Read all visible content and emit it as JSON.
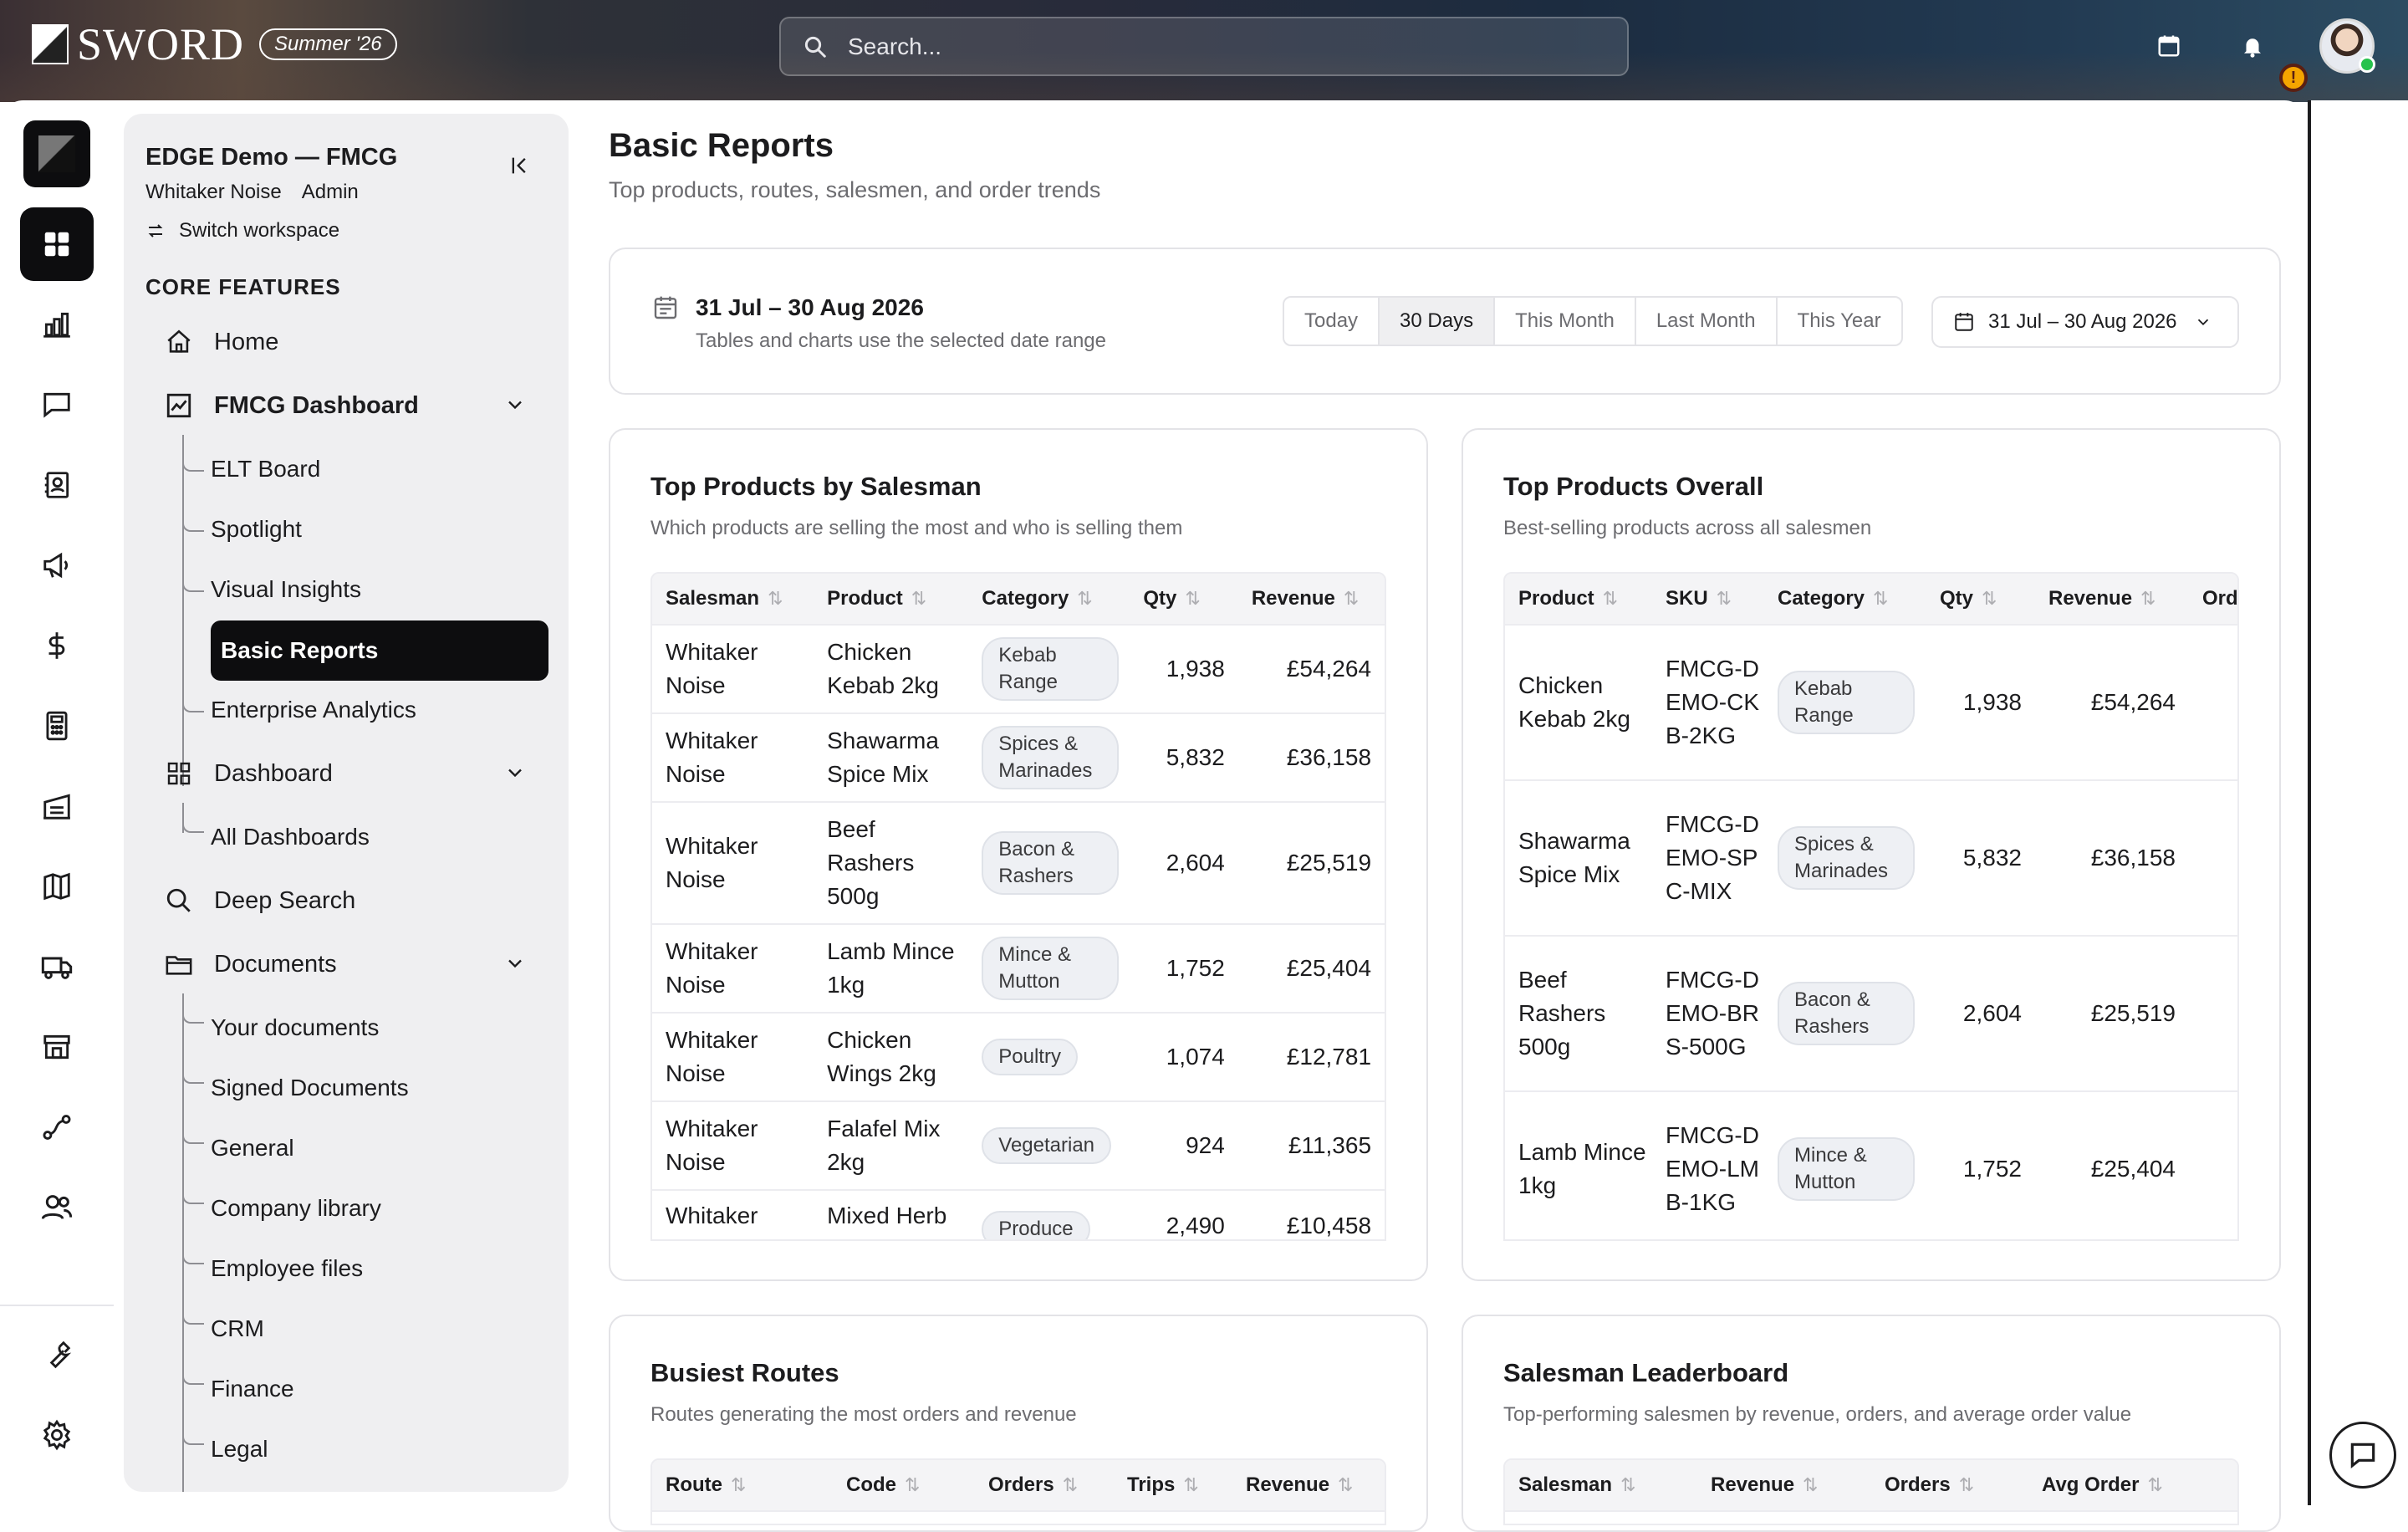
{
  "topbar": {
    "brand": "SWORD",
    "season": "Summer '26",
    "search_placeholder": "Search...",
    "alert_badge": "!"
  },
  "rail": {
    "items": [
      "dashboard-grid-icon",
      "bar-chart-icon",
      "chat-icon",
      "contacts-icon",
      "megaphone-icon",
      "dollar-icon",
      "calculator-icon",
      "factory-icon",
      "map-icon",
      "truck-icon",
      "store-icon",
      "route-icon",
      "users-icon",
      "wrench-icon",
      "gear-icon"
    ]
  },
  "sidebar": {
    "workspace_title": "EDGE Demo — FMCG",
    "user_name": "Whitaker Noise",
    "user_role": "Admin",
    "switch_label": "Switch workspace",
    "section_label": "CORE FEATURES",
    "home": "Home",
    "fmcg_dashboard": "FMCG Dashboard",
    "fmcg_children": [
      "ELT Board",
      "Spotlight",
      "Visual Insights",
      "Basic Reports",
      "Enterprise Analytics"
    ],
    "dashboard": "Dashboard",
    "dashboard_children": [
      "All Dashboards"
    ],
    "deep_search": "Deep Search",
    "documents": "Documents",
    "documents_children": [
      "Your documents",
      "Signed Documents",
      "General",
      "Company library",
      "Employee files",
      "CRM",
      "Finance",
      "Legal"
    ]
  },
  "page": {
    "title": "Basic Reports",
    "subtitle": "Top products, routes, salesmen, and order trends"
  },
  "date_range": {
    "label": "31 Jul – 30 Aug 2026",
    "hint": "Tables and charts use the selected date range",
    "presets": [
      "Today",
      "30 Days",
      "This Month",
      "Last Month",
      "This Year"
    ],
    "selected_preset": "30 Days",
    "picker_value": "31 Jul – 30 Aug 2026"
  },
  "top_by_salesman": {
    "title": "Top Products by Salesman",
    "subtitle": "Which products are selling the most and who is selling them",
    "columns": [
      "Salesman",
      "Product",
      "Category",
      "Qty",
      "Revenue"
    ],
    "rows": [
      {
        "salesman": "Whitaker Noise",
        "product": "Chicken Kebab 2kg",
        "category": "Kebab Range",
        "qty": "1,938",
        "revenue": "£54,264"
      },
      {
        "salesman": "Whitaker Noise",
        "product": "Shawarma Spice Mix",
        "category": "Spices & Marinades",
        "qty": "5,832",
        "revenue": "£36,158"
      },
      {
        "salesman": "Whitaker Noise",
        "product": "Beef Rashers 500g",
        "category": "Bacon & Rashers",
        "qty": "2,604",
        "revenue": "£25,519"
      },
      {
        "salesman": "Whitaker Noise",
        "product": "Lamb Mince 1kg",
        "category": "Mince & Mutton",
        "qty": "1,752",
        "revenue": "£25,404"
      },
      {
        "salesman": "Whitaker Noise",
        "product": "Chicken Wings 2kg",
        "category": "Poultry",
        "qty": "1,074",
        "revenue": "£12,781"
      },
      {
        "salesman": "Whitaker Noise",
        "product": "Falafel Mix 2kg",
        "category": "Vegetarian",
        "qty": "924",
        "revenue": "£11,365"
      },
      {
        "salesman": "Whitaker",
        "product": "Mixed Herb",
        "category": "Produce",
        "qty": "2,490",
        "revenue": "£10,458"
      }
    ]
  },
  "top_overall": {
    "title": "Top Products Overall",
    "subtitle": "Best-selling products across all salesmen",
    "columns": [
      "Product",
      "SKU",
      "Category",
      "Qty",
      "Revenue",
      "Ord"
    ],
    "rows": [
      {
        "product": "Chicken Kebab 2kg",
        "sku": "FMCG-DEMO-CKB-2KG",
        "category": "Kebab Range",
        "qty": "1,938",
        "revenue": "£54,264"
      },
      {
        "product": "Shawarma Spice Mix",
        "sku": "FMCG-DEMO-SPC-MIX",
        "category": "Spices & Marinades",
        "qty": "5,832",
        "revenue": "£36,158"
      },
      {
        "product": "Beef Rashers 500g",
        "sku": "FMCG-DEMO-BRS-500G",
        "category": "Bacon & Rashers",
        "qty": "2,604",
        "revenue": "£25,519"
      },
      {
        "product": "Lamb Mince 1kg",
        "sku": "FMCG-DEMO-LMB-1KG",
        "category": "Mince & Mutton",
        "qty": "1,752",
        "revenue": "£25,404"
      }
    ]
  },
  "busiest_routes": {
    "title": "Busiest Routes",
    "subtitle": "Routes generating the most orders and revenue",
    "columns": [
      "Route",
      "Code",
      "Orders",
      "Trips",
      "Revenue"
    ]
  },
  "leaderboard": {
    "title": "Salesman Leaderboard",
    "subtitle": "Top-performing salesmen by revenue, orders, and average order value",
    "columns": [
      "Salesman",
      "Revenue",
      "Orders",
      "Avg Order"
    ]
  },
  "colors": {
    "active_bg": "#0d0d0f",
    "sidebar_bg": "#efeff1",
    "muted_text": "#6c6c70"
  }
}
